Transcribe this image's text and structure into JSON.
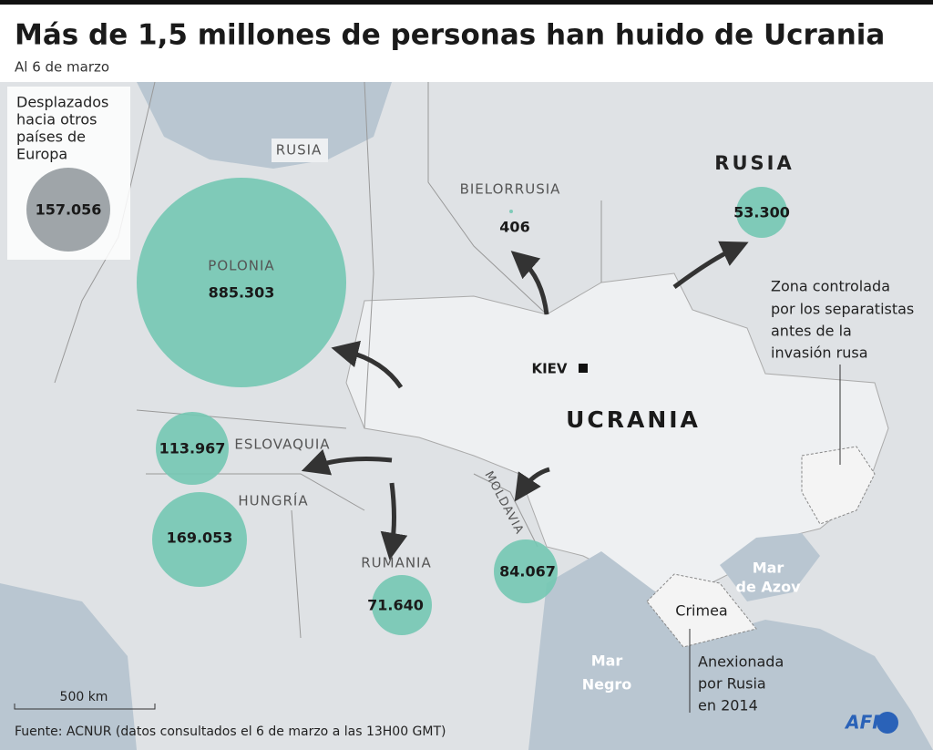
{
  "header": {
    "title": "Más de 1,5 millones de personas han huido de Ucrania",
    "subtitle": "Al 6 de marzo"
  },
  "inset": {
    "label": [
      "Desplazados",
      "hacia otros",
      "países de",
      "Europa"
    ],
    "value": "157.056"
  },
  "countries": [
    {
      "name": "POLONIA",
      "value": "885.303"
    },
    {
      "name": "RUSIA",
      "value": "53.300"
    },
    {
      "name": "BIELORRUSIA",
      "value": "406"
    },
    {
      "name": "ESLOVAQUIA",
      "value": "113.967"
    },
    {
      "name": "HUNGRÍA",
      "value": "169.053"
    },
    {
      "name": "RUMANIA",
      "value": "71.640"
    },
    {
      "name": "MOLDAVIA",
      "value": "84.067"
    }
  ],
  "labels": {
    "russia_small": "RUSIA",
    "kiev": "KIEV",
    "ukraine": "UCRANIA",
    "separatists": [
      "Zona controlada",
      "por los separatistas",
      "antes de la",
      "invasión rusa"
    ],
    "azov": [
      "Mar",
      "de Azov"
    ],
    "crimea": "Crimea",
    "annexed": [
      "Anexionada",
      "por Rusia",
      "en 2014"
    ],
    "black_sea": [
      "Mar",
      "Negro"
    ],
    "scale": "500 km"
  },
  "footer": {
    "source": "Fuente: ACNUR (datos consultados el 6 de marzo a las 13H00 GMT)",
    "logo": "AFP"
  }
}
